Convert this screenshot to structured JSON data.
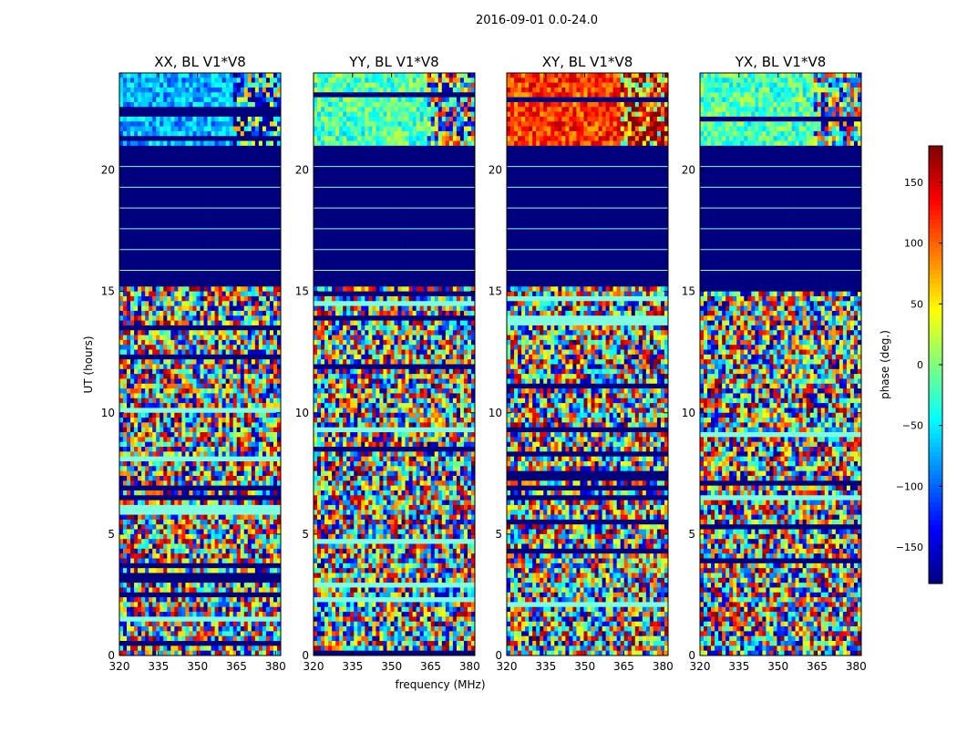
{
  "chart_data": {
    "type": "heatmap",
    "suptitle": "2016-09-01 0.0-24.0",
    "xlabel": "frequency (MHz)",
    "ylabel": "UT (hours)",
    "xlim": [
      320,
      382
    ],
    "ylim": [
      0,
      24
    ],
    "xticks": [
      320,
      335,
      350,
      365,
      380
    ],
    "yticks": [
      0,
      5,
      10,
      15,
      20
    ],
    "colorbar": {
      "label": "phase (deg.)",
      "range": [
        -180,
        180
      ],
      "ticks": [
        -150,
        -100,
        -50,
        0,
        50,
        100,
        150
      ],
      "colormap": "jet"
    },
    "panels": [
      {
        "title": "XX, BL V1*V8"
      },
      {
        "title": "YY, BL V1*V8"
      },
      {
        "title": "XY, BL V1*V8"
      },
      {
        "title": "YX, BL V1*V8"
      }
    ],
    "flagged_blocks_ut": [
      [
        15.3,
        21.0
      ]
    ],
    "colors": {
      "flagged": "#00007f",
      "cyan_green": "#7fffdf"
    }
  }
}
